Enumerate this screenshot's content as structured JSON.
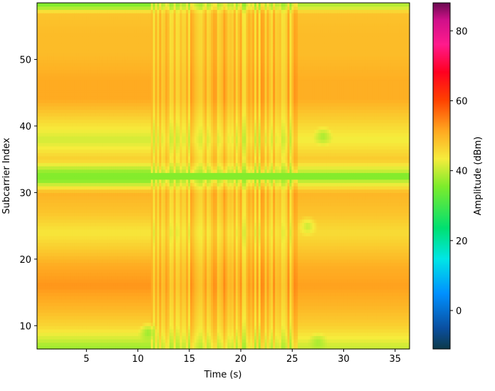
{
  "chart_data": {
    "type": "heatmap",
    "title": "",
    "xlabel": "Time (s)",
    "ylabel": "Subcarrier Index",
    "colorbar_label": "Amplitude (dBm)",
    "xlim": [
      0.2,
      36.4
    ],
    "ylim": [
      6.5,
      58.5
    ],
    "clim": [
      -11,
      88
    ],
    "colormap": "hsv_r-like (blue → cyan → green → yellow → orange → red → magenta)",
    "grid": false,
    "x_ticks": [
      5,
      10,
      15,
      20,
      25,
      30,
      35
    ],
    "y_ticks": [
      10,
      20,
      30,
      40,
      50
    ],
    "colorbar_ticks": [
      0,
      20,
      40,
      60,
      80
    ],
    "time_segments": [
      {
        "range": [
          0.2,
          11.3
        ],
        "pattern": "steady"
      },
      {
        "range": [
          11.3,
          25.5
        ],
        "pattern": "vertical streaks (motion)"
      },
      {
        "range": [
          25.5,
          36.4
        ],
        "pattern": "steady"
      }
    ],
    "subcarrier_profile": [
      {
        "subcarrier": 7,
        "amplitude_dbm": 38
      },
      {
        "subcarrier": 8,
        "amplitude_dbm": 41
      },
      {
        "subcarrier": 10,
        "amplitude_dbm": 46
      },
      {
        "subcarrier": 13,
        "amplitude_dbm": 50
      },
      {
        "subcarrier": 16,
        "amplitude_dbm": 53
      },
      {
        "subcarrier": 19,
        "amplitude_dbm": 51
      },
      {
        "subcarrier": 21,
        "amplitude_dbm": 48
      },
      {
        "subcarrier": 24,
        "amplitude_dbm": 44
      },
      {
        "subcarrier": 27,
        "amplitude_dbm": 48
      },
      {
        "subcarrier": 30,
        "amplitude_dbm": 50
      },
      {
        "subcarrier": 32,
        "amplitude_dbm": 35
      },
      {
        "subcarrier": 33,
        "amplitude_dbm": 36
      },
      {
        "subcarrier": 35,
        "amplitude_dbm": 47
      },
      {
        "subcarrier": 38,
        "amplitude_dbm": 41
      },
      {
        "subcarrier": 41,
        "amplitude_dbm": 46
      },
      {
        "subcarrier": 44,
        "amplitude_dbm": 51
      },
      {
        "subcarrier": 47,
        "amplitude_dbm": 51
      },
      {
        "subcarrier": 51,
        "amplitude_dbm": 49
      },
      {
        "subcarrier": 54,
        "amplitude_dbm": 49
      },
      {
        "subcarrier": 57,
        "amplitude_dbm": 48
      },
      {
        "subcarrier": 58,
        "amplitude_dbm": 36
      }
    ],
    "local_features": [
      {
        "time": 28,
        "subcarrier": 38.5,
        "amplitude_dbm": 38
      },
      {
        "time": 26.5,
        "subcarrier": 25,
        "amplitude_dbm": 40
      },
      {
        "time": 27.5,
        "subcarrier": 7.5,
        "amplitude_dbm": 38
      },
      {
        "time": 11,
        "subcarrier": 9,
        "amplitude_dbm": 37
      }
    ]
  }
}
